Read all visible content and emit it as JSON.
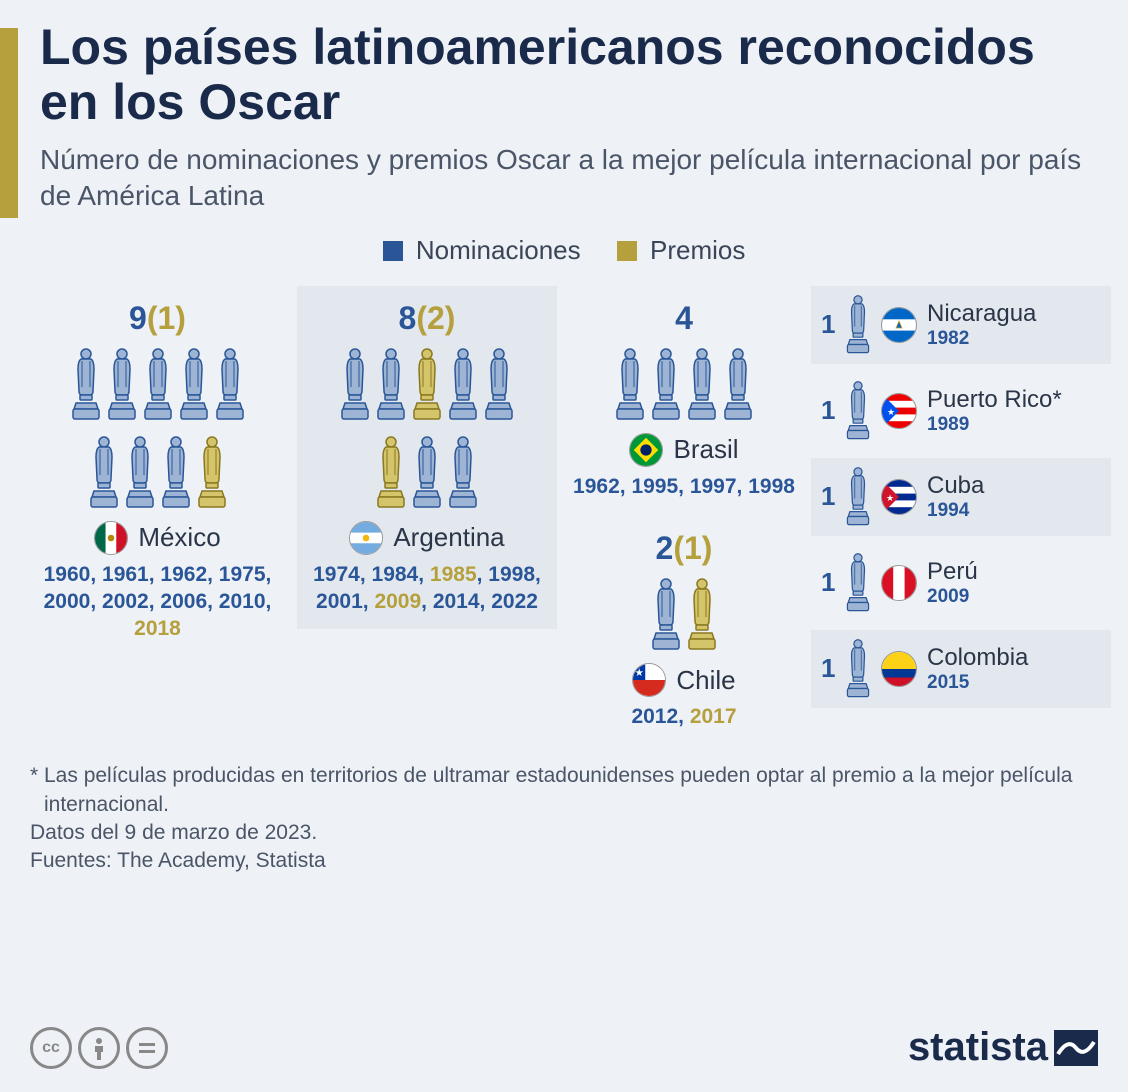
{
  "colors": {
    "background": "#eef1f5",
    "panel": "#e3e8ef",
    "accent": "#b5a03d",
    "title": "#1a2a4a",
    "subtitle": "#4a5568",
    "nomination": "#2a5698",
    "award": "#b5a03d",
    "oscar_blue_fill": "#9db4d4",
    "oscar_blue_stroke": "#2a5698",
    "oscar_gold_fill": "#d4c46a",
    "oscar_gold_stroke": "#8a7820"
  },
  "header": {
    "title": "Los países latinoamericanos reconocidos en los Oscar",
    "subtitle": "Número de nominaciones y premios Oscar a la mejor película internacional por país de América Latina"
  },
  "legend": {
    "nominations": "Nominaciones",
    "awards": "Premios"
  },
  "countries": {
    "mexico": {
      "name": "México",
      "nominations": 9,
      "awards": 1,
      "flag": "mexico",
      "years": [
        {
          "y": "1960",
          "w": false
        },
        {
          "y": "1961",
          "w": false
        },
        {
          "y": "1962",
          "w": false
        },
        {
          "y": "1975",
          "w": false
        },
        {
          "y": "2000",
          "w": false
        },
        {
          "y": "2002",
          "w": false
        },
        {
          "y": "2006",
          "w": false
        },
        {
          "y": "2010",
          "w": false
        },
        {
          "y": "2018",
          "w": true
        }
      ]
    },
    "argentina": {
      "name": "Argentina",
      "nominations": 8,
      "awards": 2,
      "flag": "argentina",
      "years": [
        {
          "y": "1974",
          "w": false
        },
        {
          "y": "1984",
          "w": false
        },
        {
          "y": "1985",
          "w": true
        },
        {
          "y": "1998",
          "w": false
        },
        {
          "y": "2001",
          "w": false
        },
        {
          "y": "2009",
          "w": true
        },
        {
          "y": "2014",
          "w": false
        },
        {
          "y": "2022",
          "w": false
        }
      ]
    },
    "brasil": {
      "name": "Brasil",
      "nominations": 4,
      "awards": 0,
      "flag": "brasil",
      "years": [
        {
          "y": "1962",
          "w": false
        },
        {
          "y": "1995",
          "w": false
        },
        {
          "y": "1997",
          "w": false
        },
        {
          "y": "1998",
          "w": false
        }
      ]
    },
    "chile": {
      "name": "Chile",
      "nominations": 2,
      "awards": 1,
      "flag": "chile",
      "years": [
        {
          "y": "2012",
          "w": false
        },
        {
          "y": "2017",
          "w": true
        }
      ]
    }
  },
  "small_countries": [
    {
      "name": "Nicaragua",
      "year": "1982",
      "flag": "nicaragua",
      "note": ""
    },
    {
      "name": "Puerto Rico",
      "year": "1989",
      "flag": "puertorico",
      "note": "*"
    },
    {
      "name": "Cuba",
      "year": "1994",
      "flag": "cuba",
      "note": ""
    },
    {
      "name": "Perú",
      "year": "2009",
      "flag": "peru",
      "note": ""
    },
    {
      "name": "Colombia",
      "year": "2015",
      "flag": "colombia",
      "note": ""
    }
  ],
  "footnotes": {
    "asterisk": "* Las películas producidas en territorios de ultramar estadounidenses pueden optar al premio a la mejor película internacional.",
    "date": "Datos del 9 de marzo de 2023.",
    "sources": "Fuentes: The Academy, Statista"
  },
  "brand": "statista"
}
